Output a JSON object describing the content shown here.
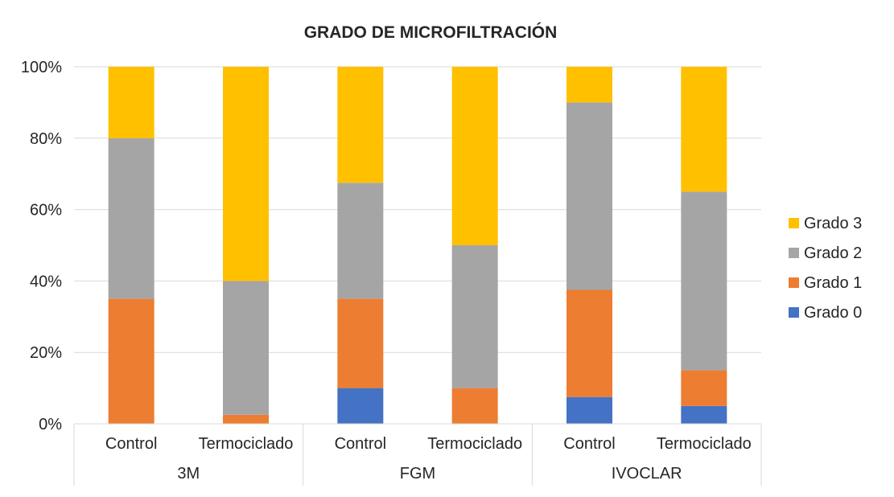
{
  "chart_data": {
    "type": "bar",
    "stacked": true,
    "percent_stacked": true,
    "title": "GRADO DE MICROFILTRACIÓN",
    "xlabel": "",
    "ylabel": "",
    "ylim": [
      0,
      100
    ],
    "y_ticks": [
      "0%",
      "20%",
      "40%",
      "60%",
      "80%",
      "100%"
    ],
    "groups": [
      {
        "label": "3M",
        "categories": [
          "Control",
          "Termociclado"
        ]
      },
      {
        "label": "FGM",
        "categories": [
          "Control",
          "Termociclado"
        ]
      },
      {
        "label": "IVOCLAR",
        "categories": [
          "Control",
          "Termociclado"
        ]
      }
    ],
    "categories": [
      "Control",
      "Termociclado",
      "Control",
      "Termociclado",
      "Control",
      "Termociclado"
    ],
    "series": [
      {
        "name": "Grado 0",
        "color": "#4472c4",
        "values": [
          0,
          0,
          10,
          0,
          7.5,
          5
        ]
      },
      {
        "name": "Grado 1",
        "color": "#ed7d31",
        "values": [
          35,
          2.5,
          25,
          10,
          30,
          10
        ]
      },
      {
        "name": "Grado 2",
        "color": "#a5a5a5",
        "values": [
          45,
          37.5,
          32.5,
          40,
          52.5,
          50
        ]
      },
      {
        "name": "Grado 3",
        "color": "#ffc000",
        "values": [
          20,
          60,
          32.5,
          50,
          10,
          35
        ]
      }
    ],
    "legend_position": "right",
    "grid": true
  }
}
